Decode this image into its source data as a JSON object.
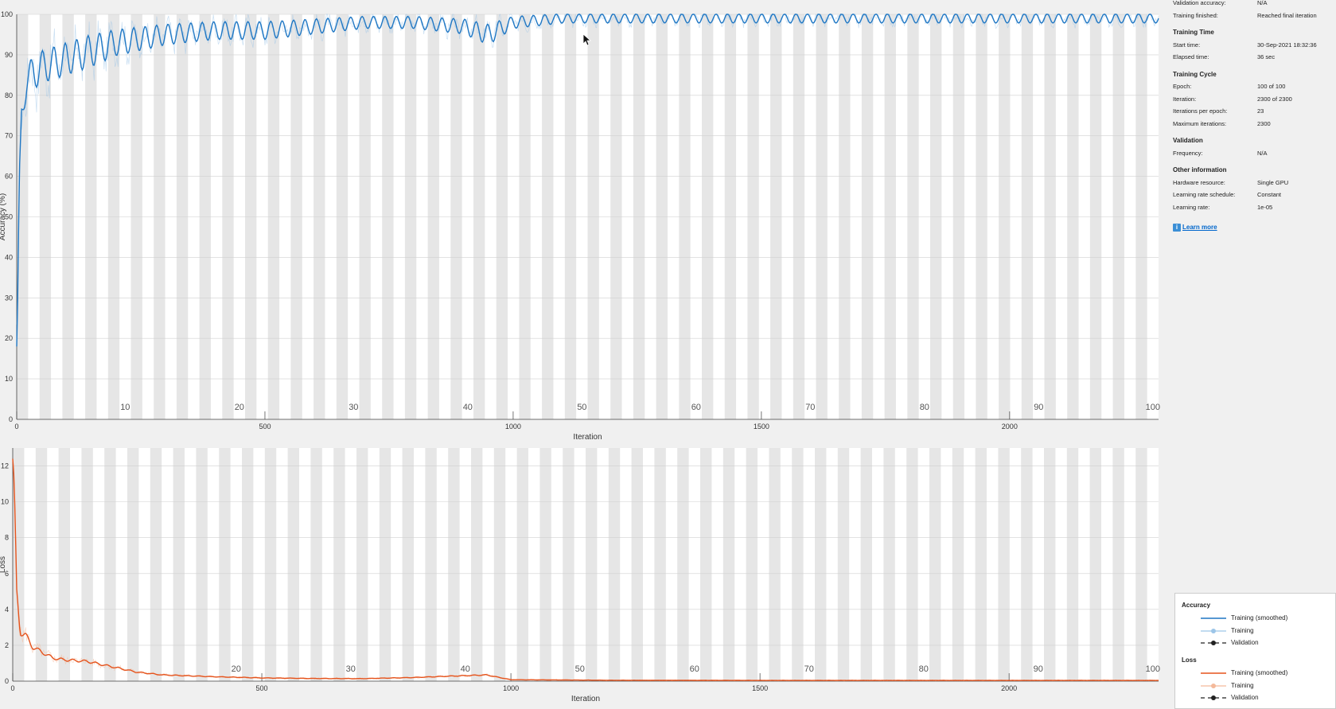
{
  "info": {
    "rows_top": [
      {
        "key": "Validation accuracy:",
        "value": "N/A"
      },
      {
        "key": "Training finished:",
        "value": "Reached final iteration"
      }
    ],
    "sections": [
      {
        "title": "Training Time",
        "rows": [
          {
            "key": "Start time:",
            "value": "30-Sep-2021 18:32:36"
          },
          {
            "key": "Elapsed time:",
            "value": "36 sec"
          }
        ]
      },
      {
        "title": "Training Cycle",
        "rows": [
          {
            "key": "Epoch:",
            "value": "100 of 100"
          },
          {
            "key": "Iteration:",
            "value": "2300 of 2300"
          },
          {
            "key": "Iterations per epoch:",
            "value": "23"
          },
          {
            "key": "Maximum iterations:",
            "value": "2300"
          }
        ]
      },
      {
        "title": "Validation",
        "rows": [
          {
            "key": "Frequency:",
            "value": "N/A"
          }
        ]
      },
      {
        "title": "Other information",
        "rows": [
          {
            "key": "Hardware resource:",
            "value": "Single GPU"
          },
          {
            "key": "Learning rate schedule:",
            "value": "Constant"
          },
          {
            "key": "Learning rate:",
            "value": "1e-05"
          }
        ]
      }
    ],
    "learn_more": "Learn more"
  },
  "legend": {
    "accuracy_title": "Accuracy",
    "loss_title": "Loss",
    "accuracy_items": [
      {
        "label": "Training (smoothed)",
        "style": "line",
        "color": "#1f77c4"
      },
      {
        "label": "Training",
        "style": "marker",
        "color": "#9cc5e8"
      },
      {
        "label": "Validation",
        "style": "dashed-marker",
        "color": "#222222"
      }
    ],
    "loss_items": [
      {
        "label": "Training (smoothed)",
        "style": "line",
        "color": "#e5531c"
      },
      {
        "label": "Training",
        "style": "marker",
        "color": "#f4b99a"
      },
      {
        "label": "Validation",
        "style": "dashed-marker",
        "color": "#222222"
      }
    ]
  },
  "colors": {
    "accuracy": "#1f77c4",
    "accuracy_raw": "#9cc5e8",
    "loss": "#e5531c",
    "loss_raw": "#f4b99a"
  },
  "chart_data": [
    {
      "type": "line",
      "title": "",
      "xlabel": "Iteration",
      "ylabel": "Accuracy (%)",
      "xlim": [
        0,
        2300
      ],
      "ylim": [
        0,
        100
      ],
      "xticks": [
        0,
        500,
        1000,
        1500,
        2000
      ],
      "yticks": [
        0,
        10,
        20,
        30,
        40,
        50,
        60,
        70,
        80,
        90,
        100
      ],
      "epoch_labels": [
        "10",
        "20",
        "30",
        "40",
        "50",
        "60",
        "70",
        "80",
        "90",
        "100"
      ],
      "epochs": 100,
      "iterations_per_epoch": 23,
      "series": [
        {
          "name": "Training (smoothed)",
          "x": [
            1,
            5,
            10,
            15,
            20,
            30,
            50,
            75,
            100,
            150,
            200,
            300,
            400,
            500,
            600,
            700,
            800,
            900,
            950,
            1000,
            1100,
            1200,
            1400,
            1600,
            1800,
            2000,
            2200,
            2300
          ],
          "y": [
            18,
            55,
            75,
            80,
            84,
            85,
            87,
            88,
            89,
            91,
            93,
            95,
            96,
            96,
            97,
            98,
            98,
            97,
            95,
            98,
            99,
            99,
            99,
            99,
            99,
            99,
            99,
            99
          ]
        }
      ]
    },
    {
      "type": "line",
      "title": "",
      "xlabel": "Iteration",
      "ylabel": "Loss",
      "xlim": [
        0,
        2300
      ],
      "ylim": [
        0,
        13
      ],
      "xticks": [
        0,
        500,
        1000,
        1500,
        2000
      ],
      "yticks": [
        0,
        2,
        4,
        6,
        8,
        10,
        12
      ],
      "epoch_labels": [
        "20",
        "30",
        "40",
        "50",
        "60",
        "70",
        "80",
        "90",
        "100"
      ],
      "epochs": 100,
      "iterations_per_epoch": 23,
      "series": [
        {
          "name": "Training (smoothed)",
          "x": [
            0,
            3,
            8,
            15,
            25,
            40,
            60,
            80,
            100,
            150,
            200,
            250,
            300,
            400,
            500,
            600,
            700,
            800,
            900,
            950,
            1000,
            1200,
            1500,
            1800,
            2000,
            2300
          ],
          "y": [
            12.4,
            11,
            5,
            2.7,
            2.6,
            1.9,
            1.6,
            1.3,
            1.2,
            1.1,
            0.8,
            0.5,
            0.35,
            0.25,
            0.18,
            0.15,
            0.14,
            0.2,
            0.3,
            0.35,
            0.08,
            0.05,
            0.04,
            0.04,
            0.04,
            0.04
          ]
        }
      ]
    }
  ]
}
